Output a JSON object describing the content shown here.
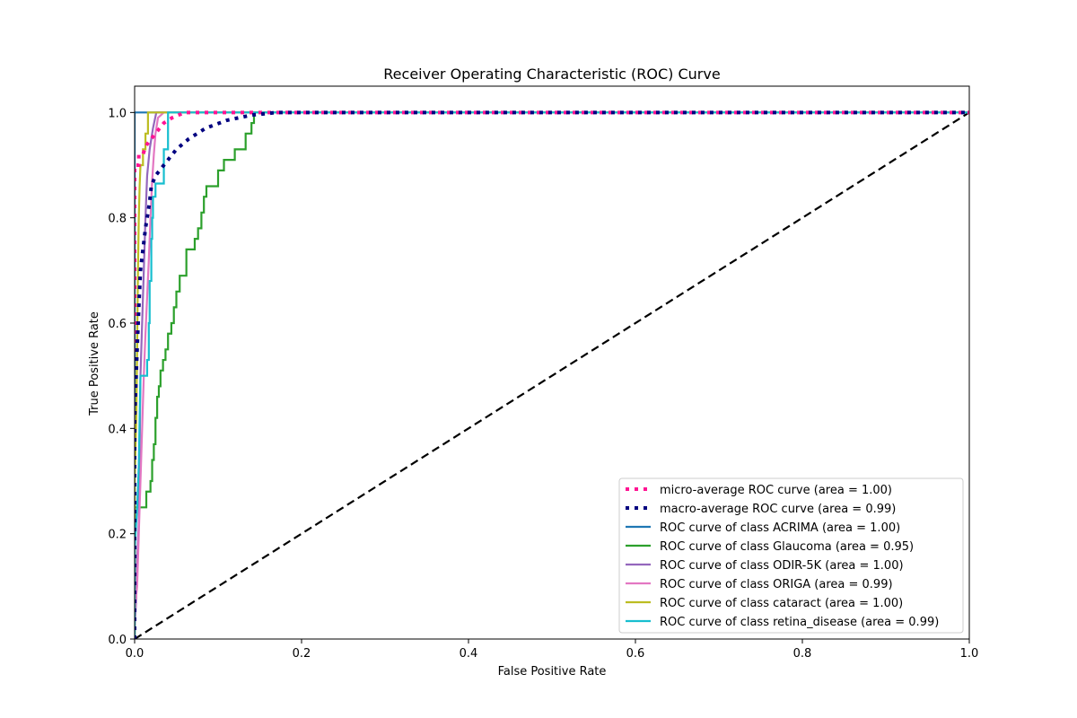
{
  "chart_data": {
    "type": "line",
    "title": "Receiver Operating Characteristic (ROC) Curve",
    "xlabel": "False Positive Rate",
    "ylabel": "True Positive Rate",
    "xlim": [
      0.0,
      1.0
    ],
    "ylim": [
      0.0,
      1.05
    ],
    "xticks": [
      "0.0",
      "0.2",
      "0.4",
      "0.6",
      "0.8",
      "1.0"
    ],
    "yticks": [
      "0.0",
      "0.2",
      "0.4",
      "0.6",
      "0.8",
      "1.0"
    ],
    "grid": false,
    "legend_position": "lower-right",
    "series": [
      {
        "name": "micro-average ROC curve (area = 1.00)",
        "color": "#ff1493",
        "style": "dotted",
        "points": [
          [
            0,
            0
          ],
          [
            0,
            0.9
          ],
          [
            0.005,
            0.9
          ],
          [
            0.005,
            0.92
          ],
          [
            0.01,
            0.92
          ],
          [
            0.012,
            0.93
          ],
          [
            0.015,
            0.94
          ],
          [
            0.02,
            0.95
          ],
          [
            0.025,
            0.96
          ],
          [
            0.03,
            0.97
          ],
          [
            0.035,
            0.98
          ],
          [
            0.045,
            0.99
          ],
          [
            0.06,
            1.0
          ],
          [
            1.0,
            1.0
          ]
        ]
      },
      {
        "name": "macro-average ROC curve (area = 0.99)",
        "color": "#000080",
        "style": "dotted",
        "points": [
          [
            0,
            0
          ],
          [
            0,
            0.42
          ],
          [
            0.003,
            0.55
          ],
          [
            0.005,
            0.63
          ],
          [
            0.007,
            0.7
          ],
          [
            0.01,
            0.74
          ],
          [
            0.013,
            0.78
          ],
          [
            0.015,
            0.8
          ],
          [
            0.018,
            0.83
          ],
          [
            0.02,
            0.86
          ],
          [
            0.025,
            0.88
          ],
          [
            0.03,
            0.89
          ],
          [
            0.04,
            0.91
          ],
          [
            0.05,
            0.93
          ],
          [
            0.065,
            0.95
          ],
          [
            0.085,
            0.97
          ],
          [
            0.11,
            0.985
          ],
          [
            0.14,
            0.995
          ],
          [
            0.17,
            1.0
          ],
          [
            1.0,
            1.0
          ]
        ]
      },
      {
        "name": "ROC curve of class ACRIMA (area = 1.00)",
        "color": "#1f77b4",
        "style": "solid",
        "points": [
          [
            0,
            0
          ],
          [
            0,
            1.0
          ],
          [
            1.0,
            1.0
          ]
        ]
      },
      {
        "name": "ROC curve of class Glaucoma (area = 0.95)",
        "color": "#2ca02c",
        "style": "solid",
        "points": [
          [
            0,
            0
          ],
          [
            0,
            0.25
          ],
          [
            0.014,
            0.25
          ],
          [
            0.014,
            0.28
          ],
          [
            0.019,
            0.28
          ],
          [
            0.019,
            0.3
          ],
          [
            0.021,
            0.3
          ],
          [
            0.021,
            0.34
          ],
          [
            0.023,
            0.34
          ],
          [
            0.023,
            0.37
          ],
          [
            0.025,
            0.37
          ],
          [
            0.025,
            0.42
          ],
          [
            0.027,
            0.42
          ],
          [
            0.027,
            0.46
          ],
          [
            0.029,
            0.46
          ],
          [
            0.029,
            0.48
          ],
          [
            0.031,
            0.48
          ],
          [
            0.031,
            0.51
          ],
          [
            0.034,
            0.51
          ],
          [
            0.034,
            0.53
          ],
          [
            0.037,
            0.53
          ],
          [
            0.037,
            0.55
          ],
          [
            0.04,
            0.55
          ],
          [
            0.04,
            0.58
          ],
          [
            0.044,
            0.58
          ],
          [
            0.044,
            0.6
          ],
          [
            0.047,
            0.6
          ],
          [
            0.047,
            0.63
          ],
          [
            0.05,
            0.63
          ],
          [
            0.05,
            0.66
          ],
          [
            0.054,
            0.66
          ],
          [
            0.054,
            0.69
          ],
          [
            0.062,
            0.69
          ],
          [
            0.062,
            0.74
          ],
          [
            0.072,
            0.74
          ],
          [
            0.072,
            0.76
          ],
          [
            0.076,
            0.76
          ],
          [
            0.076,
            0.78
          ],
          [
            0.08,
            0.78
          ],
          [
            0.08,
            0.81
          ],
          [
            0.083,
            0.81
          ],
          [
            0.083,
            0.84
          ],
          [
            0.086,
            0.84
          ],
          [
            0.086,
            0.86
          ],
          [
            0.1,
            0.86
          ],
          [
            0.1,
            0.89
          ],
          [
            0.107,
            0.89
          ],
          [
            0.107,
            0.91
          ],
          [
            0.12,
            0.91
          ],
          [
            0.12,
            0.93
          ],
          [
            0.133,
            0.93
          ],
          [
            0.133,
            0.96
          ],
          [
            0.14,
            0.96
          ],
          [
            0.14,
            0.98
          ],
          [
            0.143,
            0.98
          ],
          [
            0.143,
            1.0
          ],
          [
            1.0,
            1.0
          ]
        ]
      },
      {
        "name": "ROC curve of class ODIR-5K (area = 1.00)",
        "color": "#9467bd",
        "style": "solid",
        "points": [
          [
            0,
            0
          ],
          [
            0,
            0.02
          ],
          [
            0.002,
            0.08
          ],
          [
            0.003,
            0.15
          ],
          [
            0.005,
            0.22
          ],
          [
            0.006,
            0.35
          ],
          [
            0.007,
            0.5
          ],
          [
            0.009,
            0.6
          ],
          [
            0.011,
            0.7
          ],
          [
            0.013,
            0.8
          ],
          [
            0.015,
            0.88
          ],
          [
            0.018,
            0.93
          ],
          [
            0.022,
            0.97
          ],
          [
            0.026,
            1.0
          ],
          [
            1.0,
            1.0
          ]
        ]
      },
      {
        "name": "ROC curve of class ORIGA (area = 0.99)",
        "color": "#e377c2",
        "style": "solid",
        "points": [
          [
            0,
            0
          ],
          [
            0,
            0.05
          ],
          [
            0.003,
            0.1
          ],
          [
            0.005,
            0.2
          ],
          [
            0.007,
            0.3
          ],
          [
            0.009,
            0.4
          ],
          [
            0.011,
            0.5
          ],
          [
            0.013,
            0.58
          ],
          [
            0.015,
            0.65
          ],
          [
            0.017,
            0.72
          ],
          [
            0.019,
            0.8
          ],
          [
            0.021,
            0.87
          ],
          [
            0.023,
            0.92
          ],
          [
            0.025,
            0.96
          ],
          [
            0.028,
            0.99
          ],
          [
            0.035,
            1.0
          ],
          [
            1.0,
            1.0
          ]
        ]
      },
      {
        "name": "ROC curve of class cataract (area = 1.00)",
        "color": "#bcbd22",
        "style": "solid",
        "points": [
          [
            0,
            0
          ],
          [
            0,
            0.3
          ],
          [
            0.002,
            0.42
          ],
          [
            0.003,
            0.55
          ],
          [
            0.004,
            0.7
          ],
          [
            0.005,
            0.8
          ],
          [
            0.006,
            0.86
          ],
          [
            0.007,
            0.9
          ],
          [
            0.01,
            0.9
          ],
          [
            0.01,
            0.93
          ],
          [
            0.013,
            0.93
          ],
          [
            0.013,
            0.96
          ],
          [
            0.016,
            0.96
          ],
          [
            0.016,
            1.0
          ],
          [
            1.0,
            1.0
          ]
        ]
      },
      {
        "name": "ROC curve of class retina_disease (area = 0.99)",
        "color": "#17becf",
        "style": "solid",
        "points": [
          [
            0,
            0
          ],
          [
            0,
            0.17
          ],
          [
            0.003,
            0.25
          ],
          [
            0.005,
            0.33
          ],
          [
            0.006,
            0.42
          ],
          [
            0.007,
            0.5
          ],
          [
            0.015,
            0.5
          ],
          [
            0.015,
            0.53
          ],
          [
            0.017,
            0.53
          ],
          [
            0.017,
            0.6
          ],
          [
            0.018,
            0.6
          ],
          [
            0.018,
            0.68
          ],
          [
            0.02,
            0.68
          ],
          [
            0.02,
            0.76
          ],
          [
            0.021,
            0.76
          ],
          [
            0.021,
            0.8
          ],
          [
            0.022,
            0.8
          ],
          [
            0.022,
            0.84
          ],
          [
            0.025,
            0.84
          ],
          [
            0.025,
            0.865
          ],
          [
            0.035,
            0.865
          ],
          [
            0.035,
            0.93
          ],
          [
            0.04,
            0.93
          ],
          [
            0.04,
            1.0
          ],
          [
            1.0,
            1.0
          ]
        ]
      }
    ],
    "diagonal": {
      "color": "#000000",
      "style": "dashed",
      "points": [
        [
          0,
          0
        ],
        [
          1,
          1
        ]
      ]
    }
  }
}
